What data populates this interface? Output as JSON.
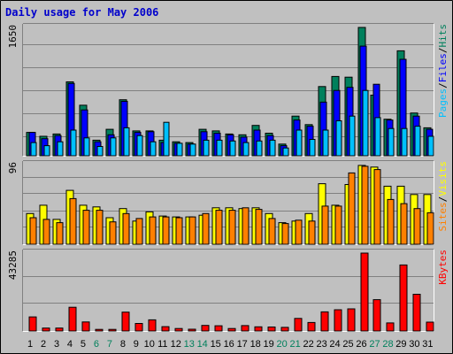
{
  "chart_data": {
    "title": "Daily usage for May 2006",
    "type": "bar",
    "days": [
      "1",
      "2",
      "3",
      "4",
      "5",
      "6",
      "7",
      "8",
      "9",
      "10",
      "11",
      "12",
      "13",
      "14",
      "15",
      "16",
      "17",
      "18",
      "19",
      "20",
      "21",
      "22",
      "23",
      "24",
      "25",
      "26",
      "27",
      "28",
      "29",
      "30",
      "31"
    ],
    "weekend_days": [
      "6",
      "7",
      "13",
      "14",
      "20",
      "21",
      "27",
      "28"
    ],
    "panels": [
      {
        "id": "hits-panel",
        "scale_label": "1650",
        "ymax": 1650,
        "legend": [
          {
            "text": "Pages",
            "color": "#00c0ff"
          },
          {
            "text": "/",
            "color": "#000000"
          },
          {
            "text": "Files",
            "color": "#0000ff"
          },
          {
            "text": "/",
            "color": "#000000"
          },
          {
            "text": "Hits",
            "color": "#00805c"
          }
        ],
        "series": [
          {
            "name": "Hits",
            "color": "#00805c",
            "values": [
              300,
              250,
              280,
              950,
              650,
              200,
              340,
              720,
              320,
              320,
              200,
              180,
              170,
              340,
              320,
              280,
              270,
              390,
              290,
              150,
              510,
              400,
              890,
              1020,
              1010,
              1650,
              780,
              470,
              1350,
              550,
              360
            ]
          },
          {
            "name": "Files",
            "color": "#0000ff",
            "values": [
              300,
              220,
              260,
              930,
              590,
              180,
              270,
              700,
              300,
              310,
              170,
              160,
              150,
              310,
              290,
              270,
              240,
              330,
              260,
              130,
              460,
              380,
              690,
              840,
              880,
              1410,
              920,
              460,
              1240,
              510,
              340
            ]
          },
          {
            "name": "Pages",
            "color": "#00c0ff",
            "values": [
              170,
              130,
              180,
              330,
              230,
              120,
              230,
              360,
              260,
              180,
              430,
              160,
              150,
              200,
              200,
              190,
              170,
              190,
              200,
              100,
              330,
              210,
              330,
              450,
              510,
              840,
              490,
              350,
              350,
              380,
              250
            ]
          }
        ]
      },
      {
        "id": "visits-panel",
        "scale_label": "96",
        "ymax": 96,
        "legend": [
          {
            "text": "Sites",
            "color": "#ff8000"
          },
          {
            "text": "/",
            "color": "#000000"
          },
          {
            "text": "Visits",
            "color": "#ffff00"
          }
        ],
        "series": [
          {
            "name": "Visits",
            "color": "#ffff00",
            "values": [
              37,
              47,
              30,
              65,
              47,
              45,
              32,
              43,
              28,
              39,
              34,
              33,
              33,
              35,
              44,
              44,
              43,
              44,
              37,
              26,
              28,
              37,
              73,
              47,
              72,
              95,
              93,
              70,
              70,
              60,
              60
            ]
          },
          {
            "name": "Sites",
            "color": "#ff8000",
            "values": [
              32,
              30,
              26,
              55,
              41,
              41,
              27,
              37,
              31,
              33,
              33,
              32,
              33,
              37,
              41,
              41,
              44,
              42,
              31,
              25,
              29,
              28,
              46,
              46,
              86,
              94,
              90,
              54,
              49,
              43,
              38
            ]
          }
        ]
      },
      {
        "id": "kbytes-panel",
        "scale_label": "43285",
        "ymax": 43285,
        "legend": [
          {
            "text": "KBytes",
            "color": "#ff0000"
          }
        ],
        "series": [
          {
            "name": "KBytes",
            "color": "#ff0000",
            "values": [
              7800,
              1600,
              1600,
              13200,
              5000,
              900,
              900,
              10500,
              4200,
              6200,
              2400,
              1400,
              1000,
              3100,
              2900,
              1400,
              3000,
              2300,
              2200,
              2000,
              7000,
              4700,
              10600,
              11800,
              12300,
              43285,
              17400,
              4500,
              36700,
              20400,
              4900
            ]
          }
        ]
      }
    ]
  }
}
